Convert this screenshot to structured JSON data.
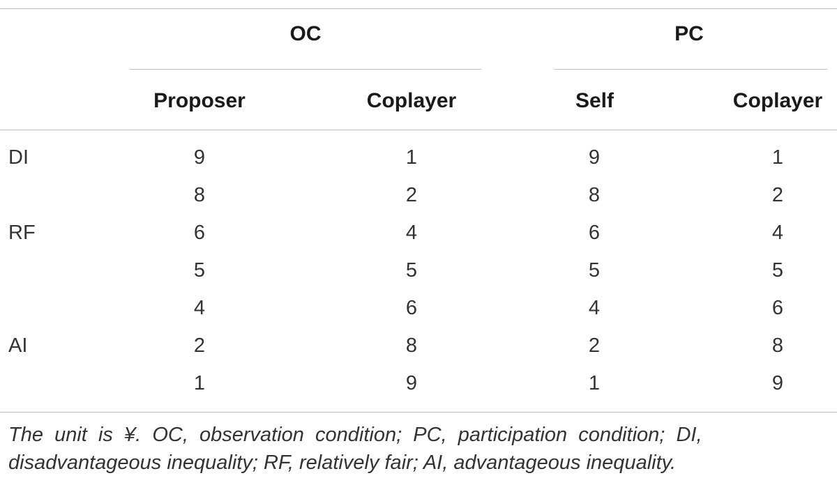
{
  "header": {
    "groups": [
      "OC",
      "PC"
    ],
    "subheaders": [
      "Proposer",
      "Coplayer",
      "Self",
      "Coplayer"
    ]
  },
  "rows": [
    {
      "label": "DI",
      "values": [
        "9",
        "1",
        "9",
        "1"
      ]
    },
    {
      "label": "",
      "values": [
        "8",
        "2",
        "8",
        "2"
      ]
    },
    {
      "label": "RF",
      "values": [
        "6",
        "4",
        "6",
        "4"
      ]
    },
    {
      "label": "",
      "values": [
        "5",
        "5",
        "5",
        "5"
      ]
    },
    {
      "label": "",
      "values": [
        "4",
        "6",
        "4",
        "6"
      ]
    },
    {
      "label": "AI",
      "values": [
        "2",
        "8",
        "2",
        "8"
      ]
    },
    {
      "label": "",
      "values": [
        "1",
        "9",
        "1",
        "9"
      ]
    }
  ],
  "footnote": {
    "line1": "The  unit  is  ¥.  OC,  observation  condition;  PC,  participation  condition;  DI,",
    "line2": "disadvantageous inequality; RF, relatively fair; AI, advantageous inequality."
  }
}
